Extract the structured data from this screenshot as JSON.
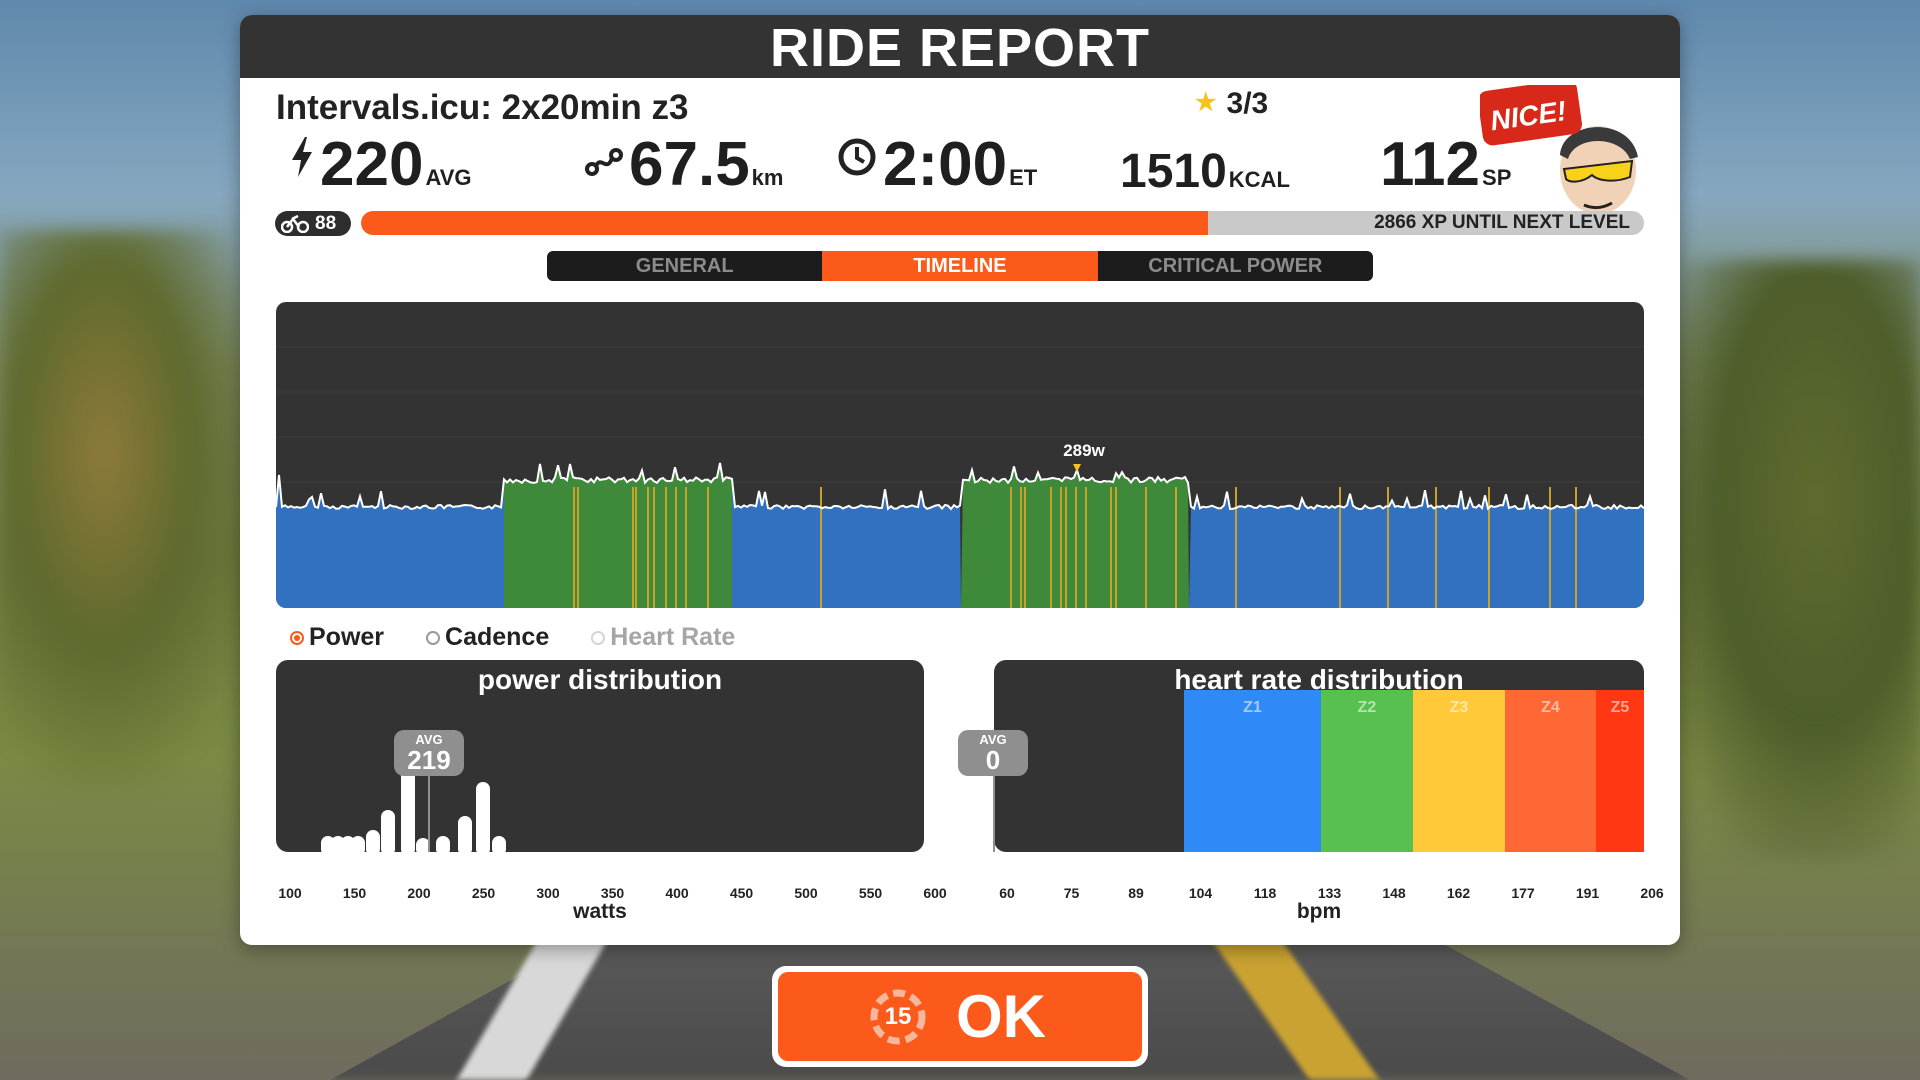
{
  "header": {
    "title": "RIDE REPORT"
  },
  "workout": {
    "name": "Intervals.icu: 2x20min z3",
    "stars": "3/3"
  },
  "stats": {
    "power": {
      "value": "220",
      "unit": "AVG",
      "icon": "lightning-icon"
    },
    "distance": {
      "value": "67.5",
      "unit": "km",
      "icon": "route-icon"
    },
    "time": {
      "value": "2:00",
      "unit": "ET",
      "icon": "clock-icon"
    },
    "calories": {
      "value": "1510",
      "unit": "KCAL"
    },
    "sport_points": {
      "value": "112",
      "unit": "SP"
    }
  },
  "mascot": {
    "speech": "NICE!"
  },
  "level": {
    "number": "88",
    "xp_text": "2866 XP UNTIL NEXT LEVEL",
    "progress": 0.66
  },
  "tabs": [
    {
      "label": "GENERAL",
      "active": false
    },
    {
      "label": "TIMELINE",
      "active": true
    },
    {
      "label": "CRITICAL POWER",
      "active": false
    }
  ],
  "timeline": {
    "peak_label": "289w",
    "colors": {
      "z2": "#3271c0",
      "z3": "#3f8a3a",
      "spike": "#c8a22a",
      "line": "#ffffff"
    }
  },
  "radios": [
    {
      "label": "Power",
      "selected": true,
      "enabled": true
    },
    {
      "label": "Cadence",
      "selected": false,
      "enabled": true
    },
    {
      "label": "Heart Rate",
      "selected": false,
      "enabled": false
    }
  ],
  "power_distribution": {
    "title": "power distribution",
    "avg_label": "AVG",
    "avg_value": "219",
    "xlabel": "watts",
    "ticks": [
      "100",
      "150",
      "200",
      "250",
      "300",
      "350",
      "400",
      "450",
      "500",
      "550",
      "600"
    ]
  },
  "hr_distribution": {
    "title": "heart rate distribution",
    "avg_label": "AVG",
    "avg_value": "0",
    "xlabel": "bpm",
    "ticks": [
      "60",
      "75",
      "89",
      "104",
      "118",
      "133",
      "148",
      "162",
      "177",
      "191",
      "206"
    ],
    "zones": [
      {
        "label": "Z1",
        "color": "#2f8af7"
      },
      {
        "label": "Z2",
        "color": "#58c04f"
      },
      {
        "label": "Z3",
        "color": "#ffc93a"
      },
      {
        "label": "Z4",
        "color": "#ff6734"
      },
      {
        "label": "Z5",
        "color": "#ff3813"
      }
    ]
  },
  "ok_button": {
    "label": "OK",
    "countdown": "15"
  }
}
